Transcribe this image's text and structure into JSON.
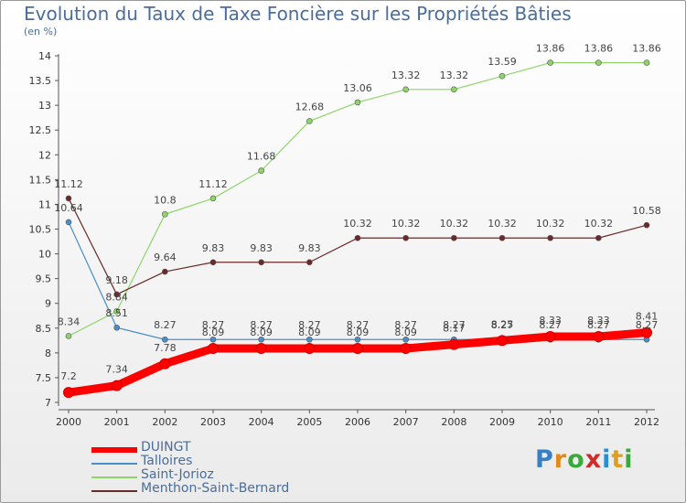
{
  "title": "Evolution du Taux de Taxe Foncière sur les Propriétés Bâties",
  "subtitle": "(en %)",
  "logo": {
    "text": "Proxiti",
    "letters": [
      "P",
      "r",
      "o",
      "x",
      "i",
      "t",
      "i"
    ],
    "colors": [
      "#3a7fc4",
      "#e08a1e",
      "#3aa83a",
      "#d02a2a",
      "#2a8fd0",
      "#e0a01e",
      "#3aa83a"
    ]
  },
  "chart_data": {
    "type": "line",
    "title": "Evolution du Taux de Taxe Foncière sur les Propriétés Bâties",
    "ylabel": "(en %)",
    "xlabel": "",
    "x": [
      "2000",
      "2001",
      "2002",
      "2003",
      "2004",
      "2005",
      "2006",
      "2007",
      "2008",
      "2009",
      "2010",
      "2011",
      "2012"
    ],
    "ylim": [
      7,
      14
    ],
    "yticks": [
      "7",
      "7.5",
      "8",
      "8.5",
      "9",
      "9.5",
      "10",
      "10.5",
      "11",
      "11.5",
      "12",
      "12.5",
      "13",
      "13.5",
      "14"
    ],
    "grid": false,
    "legend_position": "bottom-left",
    "series": [
      {
        "name": "DUINGT",
        "color": "#ff0000",
        "values": [
          7.2,
          7.34,
          7.78,
          8.09,
          8.09,
          8.09,
          8.09,
          8.09,
          8.17,
          8.25,
          8.33,
          8.33,
          8.41
        ],
        "labels": [
          "7.2",
          "7.34",
          "7.78",
          "8.09",
          "8.09",
          "8.09",
          "8.09",
          "8.09",
          "8.17",
          "8.25",
          "8.33",
          "8.33",
          "8.41"
        ]
      },
      {
        "name": "Talloires",
        "color": "#4a8ec8",
        "values": [
          10.64,
          8.51,
          8.27,
          8.27,
          8.27,
          8.27,
          8.27,
          8.27,
          8.27,
          8.27,
          8.27,
          8.27,
          8.27
        ],
        "labels": [
          "10.64",
          "8.51",
          "8.27",
          "8.27",
          "8.27",
          "8.27",
          "8.27",
          "8.27",
          "8.27",
          "8.27",
          "8.27",
          "8.27",
          "8.27"
        ]
      },
      {
        "name": "Saint-Jorioz",
        "color": "#8fd46a",
        "values": [
          8.34,
          8.84,
          10.8,
          11.12,
          11.68,
          12.68,
          13.06,
          13.32,
          13.32,
          13.59,
          13.86,
          13.86,
          13.86
        ],
        "labels": [
          "8.34",
          "8.84",
          "10.8",
          "11.12",
          "11.68",
          "12.68",
          "13.06",
          "13.32",
          "13.32",
          "13.59",
          "13.86",
          "13.86",
          "13.86"
        ]
      },
      {
        "name": "Menthon-Saint-Bernard",
        "color": "#6b2a2a",
        "values": [
          11.12,
          9.18,
          9.64,
          9.83,
          9.83,
          9.83,
          10.32,
          10.32,
          10.32,
          10.32,
          10.32,
          10.32,
          10.58
        ],
        "labels": [
          "11.12",
          "9.18",
          "9.64",
          "9.83",
          "9.83",
          "9.83",
          "10.32",
          "10.32",
          "10.32",
          "10.32",
          "10.32",
          "10.32",
          "10.58"
        ]
      }
    ]
  }
}
